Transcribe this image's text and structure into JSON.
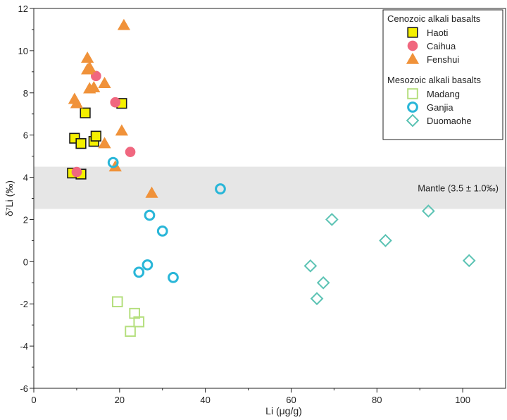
{
  "chart_data": {
    "type": "scatter",
    "xlabel": "Li (μg/g)",
    "ylabel": "δ⁷Li (‰)",
    "xlim": [
      0,
      110
    ],
    "ylim": [
      -6,
      12
    ],
    "xticks": [
      0,
      20,
      40,
      60,
      80,
      100
    ],
    "yticks": [
      -6,
      -4,
      -2,
      0,
      2,
      4,
      6,
      8,
      10,
      12
    ],
    "grid": false,
    "legend_position": "top-right",
    "band": {
      "y0": 2.5,
      "y1": 4.5,
      "label": "Mantle (3.5 ± 1.0‰)",
      "color": "#e6e6e6"
    },
    "legend_groups": [
      {
        "title": "Cenozoic alkali basalts",
        "series": [
          "Haoti",
          "Caihua",
          "Fenshui"
        ]
      },
      {
        "title": "Mesozoic alkali basalts",
        "series": [
          "Madang",
          "Ganjia",
          "Duomaohe"
        ]
      }
    ],
    "series": [
      {
        "name": "Haoti",
        "marker": "square",
        "fill": "#f5f000",
        "stroke": "#1a1a1a",
        "points": [
          [
            9,
            4.2
          ],
          [
            11,
            4.15
          ],
          [
            9.5,
            5.85
          ],
          [
            11,
            5.6
          ],
          [
            14,
            5.7
          ],
          [
            14.5,
            5.95
          ],
          [
            12,
            7.05
          ],
          [
            20.5,
            7.5
          ]
        ]
      },
      {
        "name": "Caihua",
        "marker": "circle",
        "fill": "#f0677f",
        "stroke": "#f0677f",
        "points": [
          [
            10,
            4.25
          ],
          [
            14.5,
            8.8
          ],
          [
            19,
            7.55
          ],
          [
            22.5,
            5.2
          ]
        ]
      },
      {
        "name": "Fenshui",
        "marker": "triangle",
        "fill": "#f0923a",
        "stroke": "#f0923a",
        "points": [
          [
            12.5,
            9.65
          ],
          [
            12.5,
            9.1
          ],
          [
            13,
            9.2
          ],
          [
            9.5,
            7.7
          ],
          [
            10,
            7.5
          ],
          [
            13,
            8.2
          ],
          [
            14,
            8.25
          ],
          [
            16.5,
            8.45
          ],
          [
            16.5,
            5.6
          ],
          [
            20.5,
            6.2
          ],
          [
            21,
            11.2
          ],
          [
            19,
            4.5
          ],
          [
            27.5,
            3.25
          ]
        ]
      },
      {
        "name": "Madang",
        "marker": "square-open",
        "fill": "none",
        "stroke": "#b5df7e",
        "points": [
          [
            19.5,
            -1.9
          ],
          [
            23.5,
            -2.45
          ],
          [
            24.5,
            -2.85
          ],
          [
            22.5,
            -3.3
          ]
        ]
      },
      {
        "name": "Ganjia",
        "marker": "circle-open",
        "fill": "none",
        "stroke": "#29b6d8",
        "points": [
          [
            18.5,
            4.7
          ],
          [
            27,
            2.2
          ],
          [
            30,
            1.45
          ],
          [
            26.5,
            -0.15
          ],
          [
            24.5,
            -0.5
          ],
          [
            32.5,
            -0.75
          ],
          [
            43.5,
            3.45
          ]
        ]
      },
      {
        "name": "Duomaohe",
        "marker": "diamond-open",
        "fill": "none",
        "stroke": "#5cc3b4",
        "points": [
          [
            64.5,
            -0.2
          ],
          [
            67.5,
            -1.0
          ],
          [
            66,
            -1.75
          ],
          [
            69.5,
            2.0
          ],
          [
            82,
            1.0
          ],
          [
            92,
            2.4
          ],
          [
            101.5,
            0.05
          ]
        ]
      }
    ]
  }
}
